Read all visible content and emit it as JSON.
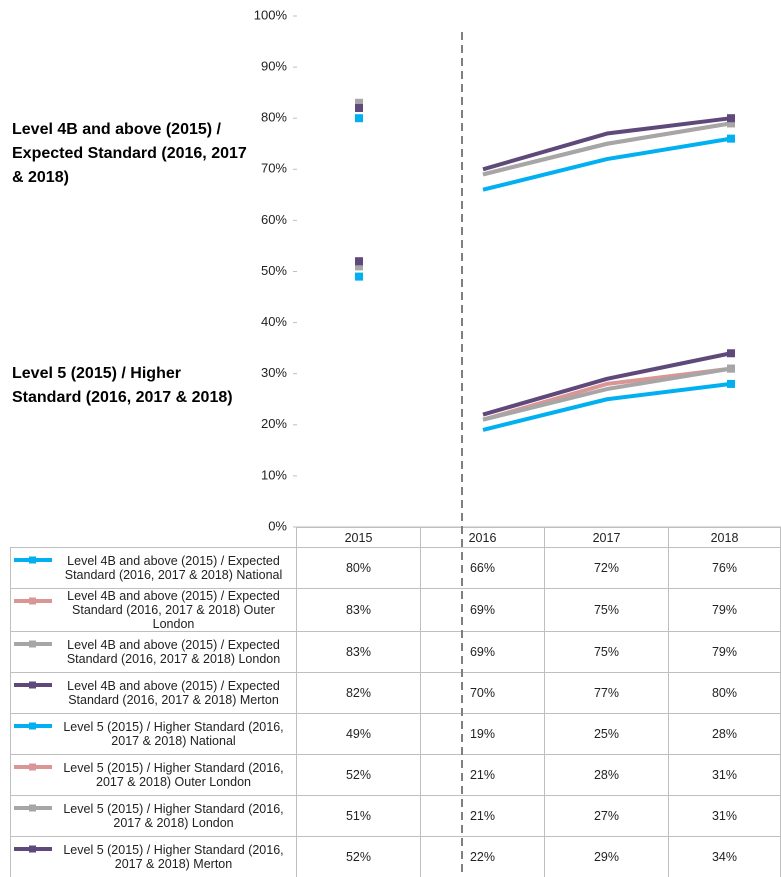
{
  "chart_data": {
    "type": "line",
    "annotations": [
      "Level 4B and above (2015) / Expected Standard (2016, 2017 & 2018)",
      "Level 5 (2015) / Higher Standard (2016, 2017 & 2018)"
    ],
    "categories": [
      "2015",
      "2016",
      "2017",
      "2018"
    ],
    "ylim": [
      0,
      100
    ],
    "yticks": [
      {
        "value": 0,
        "label": "0%"
      },
      {
        "value": 10,
        "label": "10%"
      },
      {
        "value": 20,
        "label": "20%"
      },
      {
        "value": 30,
        "label": "30%"
      },
      {
        "value": 40,
        "label": "40%"
      },
      {
        "value": 50,
        "label": "50%"
      },
      {
        "value": 60,
        "label": "60%"
      },
      {
        "value": 70,
        "label": "70%"
      },
      {
        "value": 80,
        "label": "80%"
      },
      {
        "value": 90,
        "label": "90%"
      },
      {
        "value": 100,
        "label": "100%"
      }
    ],
    "series": [
      {
        "name": "Level 4B and above (2015) / Expected Standard (2016, 2017 & 2018) National",
        "color": "#00b0f0",
        "values": [
          80,
          66,
          72,
          76
        ],
        "value_labels": [
          "80%",
          "66%",
          "72%",
          "76%"
        ]
      },
      {
        "name": "Level 4B and above (2015) / Expected Standard (2016, 2017 & 2018) Outer London",
        "color": "#d99694",
        "values": [
          83,
          69,
          75,
          79
        ],
        "value_labels": [
          "83%",
          "69%",
          "75%",
          "79%"
        ]
      },
      {
        "name": "Level 4B and above (2015) / Expected Standard (2016, 2017 & 2018) London",
        "color": "#a6a6a6",
        "values": [
          83,
          69,
          75,
          79
        ],
        "value_labels": [
          "83%",
          "69%",
          "75%",
          "79%"
        ]
      },
      {
        "name": "Level 4B and above (2015) / Expected Standard (2016, 2017 & 2018) Merton",
        "color": "#5f497a",
        "values": [
          82,
          70,
          77,
          80
        ],
        "value_labels": [
          "82%",
          "70%",
          "77%",
          "80%"
        ]
      },
      {
        "name": "Level 5 (2015) / Higher Standard (2016, 2017 & 2018) National",
        "color": "#00b0f0",
        "values": [
          49,
          19,
          25,
          28
        ],
        "value_labels": [
          "49%",
          "19%",
          "25%",
          "28%"
        ]
      },
      {
        "name": "Level 5 (2015) / Higher Standard (2016, 2017 & 2018) Outer London",
        "color": "#d99694",
        "values": [
          52,
          21,
          28,
          31
        ],
        "value_labels": [
          "52%",
          "21%",
          "28%",
          "31%"
        ]
      },
      {
        "name": "Level 5 (2015) / Higher Standard (2016, 2017 & 2018) London",
        "color": "#a6a6a6",
        "values": [
          51,
          21,
          27,
          31
        ],
        "value_labels": [
          "51%",
          "21%",
          "27%",
          "31%"
        ]
      },
      {
        "name": "Level 5 (2015) / Higher Standard (2016, 2017 & 2018) Merton",
        "color": "#5f497a",
        "values": [
          52,
          22,
          29,
          34
        ],
        "value_labels": [
          "52%",
          "22%",
          "29%",
          "34%"
        ]
      }
    ]
  }
}
